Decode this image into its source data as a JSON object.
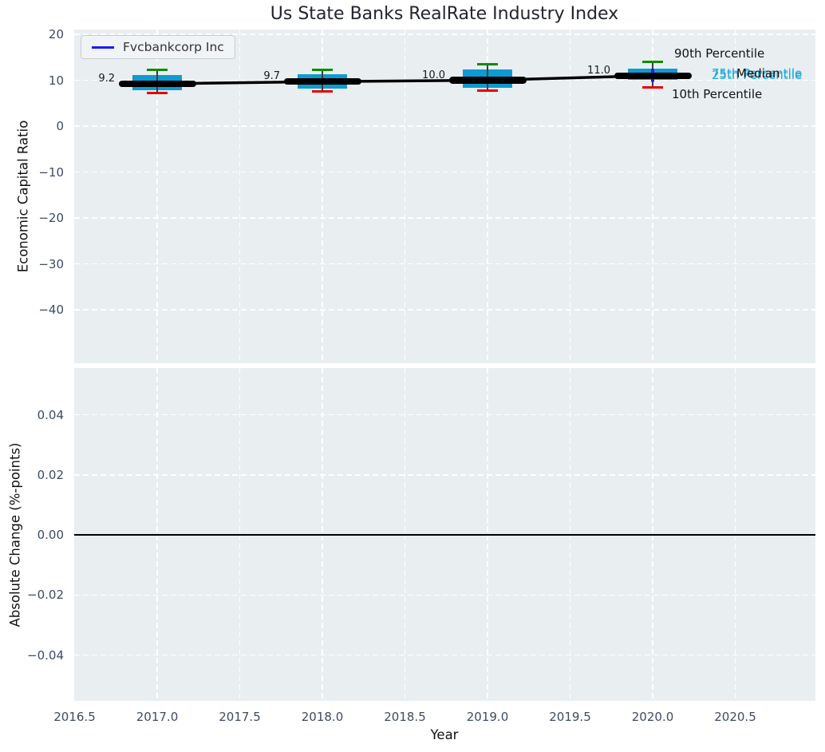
{
  "title": "Us State Banks RealRate Industry Index",
  "legend": {
    "label": "Fvcbankcorp Inc",
    "line_color": "#1a1aff"
  },
  "colors": {
    "box_fill": "#0d9bd3",
    "p90_cap": "#0e8c00",
    "p10_cap": "#e60000",
    "median_line": "#000000",
    "company_line": "#1a1aff",
    "plot_bg": "#e9eef0",
    "grid": "#ffffff",
    "tick_text": "#3e4b63",
    "annotation_cyan": "#1ea8dc",
    "whisker": "#3c3c3c"
  },
  "annotations": {
    "p90": "90th Percentile",
    "p75": "75th Percentile",
    "median": "Median",
    "p25": "25th Percentile",
    "p10": "10th Percentile"
  },
  "top_axes": {
    "ylabel": "Economic Capital Ratio",
    "yticks": [
      {
        "v": 20,
        "label": "20"
      },
      {
        "v": 10,
        "label": "10"
      },
      {
        "v": 0,
        "label": "0"
      },
      {
        "v": -10,
        "label": "−10"
      },
      {
        "v": -20,
        "label": "−20"
      },
      {
        "v": -30,
        "label": "−30"
      },
      {
        "v": -40,
        "label": "−40"
      }
    ]
  },
  "bottom_axes": {
    "ylabel": "Absolute Change (%-points)",
    "xlabel": "Year",
    "yticks": [
      {
        "v": 0.04,
        "label": "0.04"
      },
      {
        "v": 0.02,
        "label": "0.02"
      },
      {
        "v": 0,
        "label": "0.00"
      },
      {
        "v": -0.02,
        "label": "−0.02"
      },
      {
        "v": -0.04,
        "label": "−0.04"
      }
    ],
    "zero_line_value": 0.0
  },
  "xticks": [
    {
      "v": 2016.5,
      "label": "2016.5"
    },
    {
      "v": 2017.0,
      "label": "2017.0"
    },
    {
      "v": 2017.5,
      "label": "2017.5"
    },
    {
      "v": 2018.0,
      "label": "2018.0"
    },
    {
      "v": 2018.5,
      "label": "2018.5"
    },
    {
      "v": 2019.0,
      "label": "2019.0"
    },
    {
      "v": 2019.5,
      "label": "2019.5"
    },
    {
      "v": 2020.0,
      "label": "2020.0"
    },
    {
      "v": 2020.5,
      "label": "2020.5"
    }
  ],
  "chart_data": [
    {
      "type": "boxplot",
      "title": "Us State Banks RealRate Industry Index",
      "ylabel": "Economic Capital Ratio",
      "xlabel": "",
      "xlim": [
        2016.5,
        2021.0
      ],
      "ylim": [
        -52,
        21
      ],
      "grid": true,
      "legend_position": "upper left",
      "categories": [
        2017,
        2018,
        2019,
        2020
      ],
      "boxes": [
        {
          "year": 2017,
          "p10": 7.3,
          "p25": 7.8,
          "median": 9.2,
          "p75": 11.2,
          "p90": 12.3,
          "label": "9.2"
        },
        {
          "year": 2018,
          "p10": 7.6,
          "p25": 8.2,
          "median": 9.7,
          "p75": 11.3,
          "p90": 12.3,
          "label": "9.7"
        },
        {
          "year": 2019,
          "p10": 7.7,
          "p25": 8.4,
          "median": 10.0,
          "p75": 12.4,
          "p90": 13.5,
          "label": "10.0"
        },
        {
          "year": 2020,
          "p10": 8.5,
          "p25": 10.1,
          "median": 11.0,
          "p75": 12.6,
          "p90": 14.0,
          "label": "11.0"
        }
      ],
      "series": [
        {
          "name": "Fvcbankcorp Inc",
          "values": [
            9.2,
            9.7,
            10.0,
            11.0
          ]
        },
        {
          "name": "Median",
          "values": [
            9.2,
            9.7,
            10.0,
            11.0
          ]
        }
      ]
    },
    {
      "type": "line",
      "title": "",
      "ylabel": "Absolute Change (%-points)",
      "xlabel": "Year",
      "xlim": [
        2016.5,
        2021.0
      ],
      "ylim": [
        -0.055,
        0.055
      ],
      "grid": true,
      "x": [
        2016.5,
        2017.0,
        2017.5,
        2018.0,
        2018.5,
        2019.0,
        2019.5,
        2020.0,
        2020.5
      ],
      "series": [],
      "zero_line": 0.0
    }
  ]
}
